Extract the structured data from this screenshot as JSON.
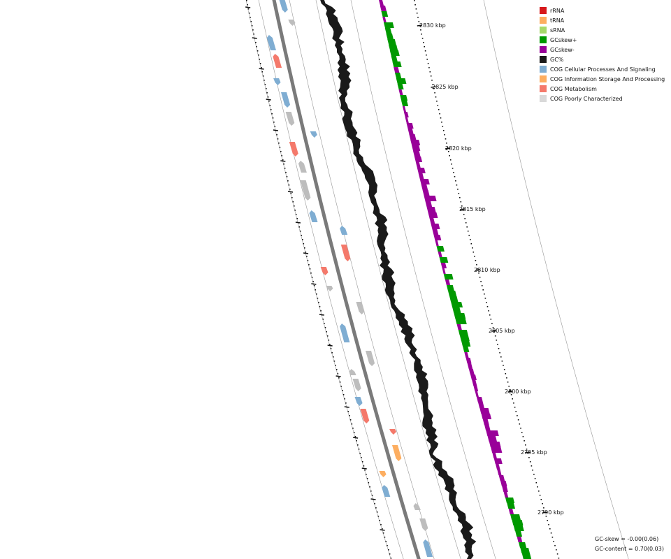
{
  "legend": [
    {
      "label": "rRNA",
      "color": "#d7191c"
    },
    {
      "label": "tRNA",
      "color": "#fdae61"
    },
    {
      "label": "sRNA",
      "color": "#a6d96a"
    },
    {
      "label": "GCskew+",
      "color": "#009900"
    },
    {
      "label": "GCskew-",
      "color": "#990099"
    },
    {
      "label": "GC%",
      "color": "#1a1a1a"
    },
    {
      "label": "COG Cellular Processes And Signaling",
      "color": "#7fadd2"
    },
    {
      "label": "COG Information Storage And Processing",
      "color": "#fdae61"
    },
    {
      "label": "COG Metabolism",
      "color": "#f4796b"
    },
    {
      "label": "COG Poorly Characterized",
      "color": "#d9d9d9"
    }
  ],
  "scale_labels": [
    "2830 kbp",
    "2825 kbp",
    "2820 kbp",
    "2815 kbp",
    "2810 kbp",
    "2805 kbp",
    "2800 kbp",
    "2795 kbp",
    "2790 kbp"
  ],
  "stats": {
    "gc_skew": "GC-skew = -0.00(0.06)",
    "gc_content": "GC-content = 0.70(0.03)"
  },
  "colors": {
    "backbone": "#7a7a7a",
    "guide_line": "#9a9a9a",
    "gc_line": "#1a1a1a",
    "skew_pos": "#009900",
    "skew_neg": "#990099",
    "unknown_gene": "#bdbdbd"
  }
}
